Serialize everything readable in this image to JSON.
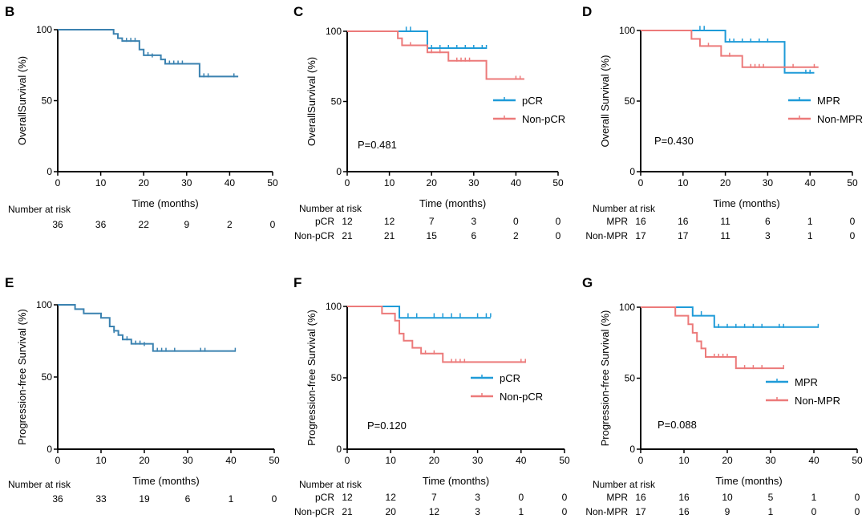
{
  "colors": {
    "single": "#3b82b0",
    "blue": "#1f9bd8",
    "red": "#ec7a7a",
    "axis": "#000000"
  },
  "chart_data": [
    {
      "panel": "B",
      "type": "line",
      "ylabel": "OverallSurvival (%)",
      "xlabel": "Time (months)",
      "xlim": [
        0,
        50
      ],
      "ylim": [
        0,
        100
      ],
      "xticks": [
        0,
        10,
        20,
        30,
        40,
        50
      ],
      "yticks": [
        0,
        50,
        100
      ],
      "risk_title": "Number at risk",
      "series": [
        {
          "name": "",
          "color": "single",
          "steps": [
            [
              0,
              100
            ],
            [
              11,
              100
            ],
            [
              13,
              97
            ],
            [
              14,
              94
            ],
            [
              15,
              92
            ],
            [
              19,
              86
            ],
            [
              20,
              82
            ],
            [
              24,
              79
            ],
            [
              25,
              76
            ],
            [
              33,
              67
            ],
            [
              42,
              67
            ]
          ],
          "censors": [
            [
              14,
              95
            ],
            [
              16,
              92
            ],
            [
              17,
              92
            ],
            [
              18,
              92
            ],
            [
              21,
              82
            ],
            [
              22,
              81
            ],
            [
              26,
              76
            ],
            [
              27,
              76
            ],
            [
              28,
              76
            ],
            [
              29,
              76
            ],
            [
              34,
              67
            ],
            [
              35,
              67
            ],
            [
              41,
              67
            ]
          ],
          "risk": [
            "36",
            "36",
            "22",
            "9",
            "2",
            "0"
          ]
        }
      ]
    },
    {
      "panel": "C",
      "type": "line",
      "ylabel": "OverallSurvival (%)",
      "xlabel": "Time (months)",
      "xlim": [
        0,
        50
      ],
      "ylim": [
        0,
        100
      ],
      "xticks": [
        0,
        10,
        20,
        30,
        40,
        50
      ],
      "yticks": [
        0,
        50,
        100
      ],
      "pvalue": "P=0.481",
      "risk_title": "Number at risk",
      "series": [
        {
          "name": "pCR",
          "color": "blue",
          "steps": [
            [
              0,
              100
            ],
            [
              18,
              100
            ],
            [
              19,
              88
            ],
            [
              33,
              88
            ]
          ],
          "censors": [
            [
              14,
              101
            ],
            [
              15,
              101
            ],
            [
              20,
              88
            ],
            [
              22,
              88
            ],
            [
              24,
              88
            ],
            [
              26,
              88
            ],
            [
              28,
              88
            ],
            [
              30,
              88
            ],
            [
              32,
              88
            ],
            [
              33,
              88
            ]
          ],
          "risk": [
            "12",
            "12",
            "7",
            "3",
            "0",
            "0"
          ]
        },
        {
          "name": "Non-pCR",
          "color": "red",
          "steps": [
            [
              0,
              100
            ],
            [
              11,
              100
            ],
            [
              12,
              95
            ],
            [
              13,
              90
            ],
            [
              19,
              85
            ],
            [
              24,
              79
            ],
            [
              33,
              66
            ],
            [
              42,
              66
            ]
          ],
          "censors": [
            [
              15,
              90
            ],
            [
              20,
              85
            ],
            [
              22,
              85
            ],
            [
              26,
              79
            ],
            [
              27,
              79
            ],
            [
              28,
              79
            ],
            [
              29,
              79
            ],
            [
              40,
              66
            ],
            [
              41,
              66
            ]
          ],
          "risk": [
            "21",
            "21",
            "15",
            "6",
            "2",
            "0"
          ]
        }
      ]
    },
    {
      "panel": "D",
      "type": "line",
      "ylabel": "Overall Survival (%)",
      "xlabel": "Time (months)",
      "xlim": [
        0,
        50
      ],
      "ylim": [
        0,
        100
      ],
      "xticks": [
        0,
        10,
        20,
        30,
        40,
        50
      ],
      "yticks": [
        0,
        50,
        100
      ],
      "pvalue": "P=0.430",
      "risk_title": "Number at risk",
      "series": [
        {
          "name": "MPR",
          "color": "blue",
          "steps": [
            [
              0,
              100
            ],
            [
              19,
              100
            ],
            [
              20,
              92
            ],
            [
              33,
              92
            ],
            [
              34,
              70
            ],
            [
              41,
              70
            ]
          ],
          "censors": [
            [
              14,
              101
            ],
            [
              15,
              101
            ],
            [
              21,
              92
            ],
            [
              22,
              92
            ],
            [
              24,
              92
            ],
            [
              26,
              92
            ],
            [
              28,
              92
            ],
            [
              30,
              92
            ],
            [
              39,
              70
            ],
            [
              40,
              70
            ]
          ],
          "risk": [
            "16",
            "16",
            "11",
            "6",
            "1",
            "0"
          ]
        },
        {
          "name": "Non-MPR",
          "color": "red",
          "steps": [
            [
              0,
              100
            ],
            [
              11,
              100
            ],
            [
              12,
              94
            ],
            [
              14,
              89
            ],
            [
              19,
              82
            ],
            [
              24,
              74
            ],
            [
              42,
              74
            ]
          ],
          "censors": [
            [
              16,
              89
            ],
            [
              21,
              82
            ],
            [
              26,
              74
            ],
            [
              27,
              74
            ],
            [
              28,
              74
            ],
            [
              29,
              74
            ],
            [
              36,
              74
            ],
            [
              41,
              74
            ]
          ],
          "risk": [
            "17",
            "17",
            "11",
            "3",
            "1",
            "0"
          ]
        }
      ]
    },
    {
      "panel": "E",
      "type": "line",
      "ylabel": "Progression-free Survival (%)",
      "xlabel": "Time (months)",
      "xlim": [
        0,
        50
      ],
      "ylim": [
        0,
        100
      ],
      "xticks": [
        0,
        10,
        20,
        30,
        40,
        50
      ],
      "yticks": [
        0,
        50,
        100
      ],
      "risk_title": "Number at risk",
      "series": [
        {
          "name": "",
          "color": "single",
          "steps": [
            [
              0,
              100
            ],
            [
              3,
              100
            ],
            [
              4,
              97
            ],
            [
              6,
              94
            ],
            [
              10,
              91
            ],
            [
              12,
              85
            ],
            [
              13,
              82
            ],
            [
              14,
              79
            ],
            [
              15,
              76
            ],
            [
              17,
              73
            ],
            [
              22,
              68
            ],
            [
              41,
              68
            ]
          ],
          "censors": [
            [
              13,
              81
            ],
            [
              16,
              76
            ],
            [
              18,
              73
            ],
            [
              19,
              73
            ],
            [
              20,
              72
            ],
            [
              23,
              68
            ],
            [
              24,
              68
            ],
            [
              25,
              68
            ],
            [
              27,
              68
            ],
            [
              33,
              68
            ],
            [
              34,
              68
            ],
            [
              41,
              68
            ]
          ],
          "risk": [
            "36",
            "33",
            "19",
            "6",
            "1",
            "0"
          ]
        }
      ]
    },
    {
      "panel": "F",
      "type": "line",
      "ylabel": "Progression-free Survival (%)",
      "xlabel": "Time (months)",
      "xlim": [
        0,
        50
      ],
      "ylim": [
        0,
        100
      ],
      "xticks": [
        0,
        10,
        20,
        30,
        40,
        50
      ],
      "yticks": [
        0,
        50,
        100
      ],
      "pvalue": "P=0.120",
      "risk_title": "Number at risk",
      "series": [
        {
          "name": "pCR",
          "color": "blue",
          "steps": [
            [
              0,
              100
            ],
            [
              11,
              100
            ],
            [
              12,
              92
            ],
            [
              33,
              92
            ]
          ],
          "censors": [
            [
              14,
              93
            ],
            [
              16,
              93
            ],
            [
              20,
              93
            ],
            [
              22,
              93
            ],
            [
              24,
              93
            ],
            [
              26,
              93
            ],
            [
              30,
              93
            ],
            [
              32,
              93
            ],
            [
              33,
              93
            ]
          ],
          "risk": [
            "12",
            "12",
            "7",
            "3",
            "0",
            "0"
          ]
        },
        {
          "name": "Non-pCR",
          "color": "red",
          "steps": [
            [
              0,
              100
            ],
            [
              7,
              100
            ],
            [
              8,
              95
            ],
            [
              11,
              90
            ],
            [
              12,
              81
            ],
            [
              13,
              76
            ],
            [
              15,
              71
            ],
            [
              17,
              67
            ],
            [
              22,
              61
            ],
            [
              41,
              61
            ]
          ],
          "censors": [
            [
              18,
              67
            ],
            [
              20,
              67
            ],
            [
              24,
              61
            ],
            [
              25,
              61
            ],
            [
              26,
              61
            ],
            [
              27,
              61
            ],
            [
              40,
              61
            ],
            [
              41,
              61
            ]
          ],
          "risk": [
            "21",
            "20",
            "12",
            "3",
            "1",
            "0"
          ]
        }
      ]
    },
    {
      "panel": "G",
      "type": "line",
      "ylabel": "Progression-free Survival (%)",
      "xlabel": "Time (months)",
      "xlim": [
        0,
        50
      ],
      "ylim": [
        0,
        100
      ],
      "xticks": [
        0,
        10,
        20,
        30,
        40,
        50
      ],
      "yticks": [
        0,
        50,
        100
      ],
      "pvalue": "P=0.088",
      "risk_title": "Number at risk",
      "series": [
        {
          "name": "MPR",
          "color": "blue",
          "steps": [
            [
              0,
              100
            ],
            [
              11,
              100
            ],
            [
              12,
              94
            ],
            [
              16,
              94
            ],
            [
              17,
              86
            ],
            [
              41,
              86
            ]
          ],
          "censors": [
            [
              14,
              95
            ],
            [
              18,
              86
            ],
            [
              20,
              86
            ],
            [
              22,
              86
            ],
            [
              24,
              86
            ],
            [
              26,
              86
            ],
            [
              28,
              86
            ],
            [
              32,
              86
            ],
            [
              33,
              86
            ],
            [
              41,
              86
            ]
          ],
          "risk": [
            "16",
            "16",
            "10",
            "5",
            "1",
            "0"
          ]
        },
        {
          "name": "Non-MPR",
          "color": "red",
          "steps": [
            [
              0,
              100
            ],
            [
              7,
              100
            ],
            [
              8,
              94
            ],
            [
              11,
              88
            ],
            [
              12,
              82
            ],
            [
              13,
              76
            ],
            [
              14,
              71
            ],
            [
              15,
              65
            ],
            [
              22,
              57
            ],
            [
              33,
              57
            ]
          ],
          "censors": [
            [
              17,
              65
            ],
            [
              18,
              65
            ],
            [
              19,
              65
            ],
            [
              20,
              65
            ],
            [
              24,
              57
            ],
            [
              26,
              57
            ],
            [
              28,
              57
            ],
            [
              33,
              57
            ]
          ],
          "risk": [
            "17",
            "16",
            "9",
            "1",
            "0",
            "0"
          ]
        }
      ]
    }
  ]
}
